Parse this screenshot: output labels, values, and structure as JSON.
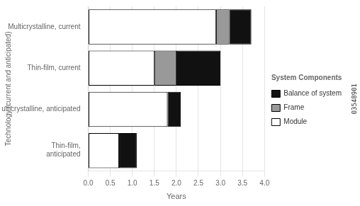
{
  "chart_data": {
    "type": "bar",
    "orientation": "horizontal",
    "stacked": true,
    "xlabel": "Years",
    "ylabel": "Technology (current and anticipated)",
    "categories": [
      "Thin-film,\nanticipated",
      "Multicrystalline, anticipated",
      "Thin-film, current",
      "Multicrystalline, current"
    ],
    "series": [
      {
        "name": "Module",
        "color": "#ffffff",
        "values": [
          0.7,
          1.8,
          1.5,
          2.9
        ]
      },
      {
        "name": "Frame",
        "color": "#999999",
        "values": [
          0.0,
          0.0,
          0.5,
          0.3
        ]
      },
      {
        "name": "Balance of system",
        "color": "#111111",
        "values": [
          0.4,
          0.3,
          1.0,
          0.5
        ]
      }
    ],
    "xlim": [
      0.0,
      4.0
    ],
    "xticks": [
      {
        "value": 0.0,
        "label": "0.0"
      },
      0.5,
      {
        "value": 1.0,
        "label": "1.0"
      },
      1.5,
      {
        "value": 2.0,
        "label": "2.0"
      },
      2.5,
      {
        "value": 3.0,
        "label": "3.0"
      },
      3.5,
      {
        "value": 4.0,
        "label": "4.0"
      }
    ],
    "grid": "x",
    "legend": "right",
    "legend_title": "System Components",
    "annotations": [
      {
        "text": "03548901"
      }
    ]
  }
}
